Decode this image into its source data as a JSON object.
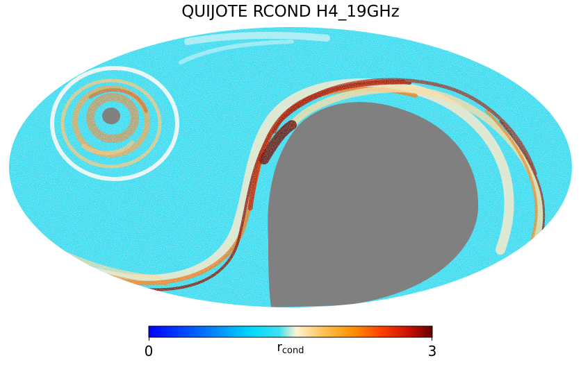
{
  "title": "QUIJOTE RCOND H4_19GHz",
  "colorbar": {
    "min_label": "0",
    "max_label": "3",
    "label_main": "r",
    "label_sub": "cond",
    "min": 0,
    "max": 3,
    "colormap": "planck",
    "stops": [
      "#0000ff",
      "#0080ff",
      "#00d9ff",
      "#40e0f0",
      "#fff3d0",
      "#ffc050",
      "#ff9000",
      "#ff4000",
      "#c81000",
      "#640000"
    ]
  },
  "map": {
    "projection": "mollweide",
    "background_value_color": "#3fdcf0",
    "masked_color": "#808080",
    "masked_regions": [
      "large-southern-mask",
      "small-northern-mask"
    ]
  }
}
